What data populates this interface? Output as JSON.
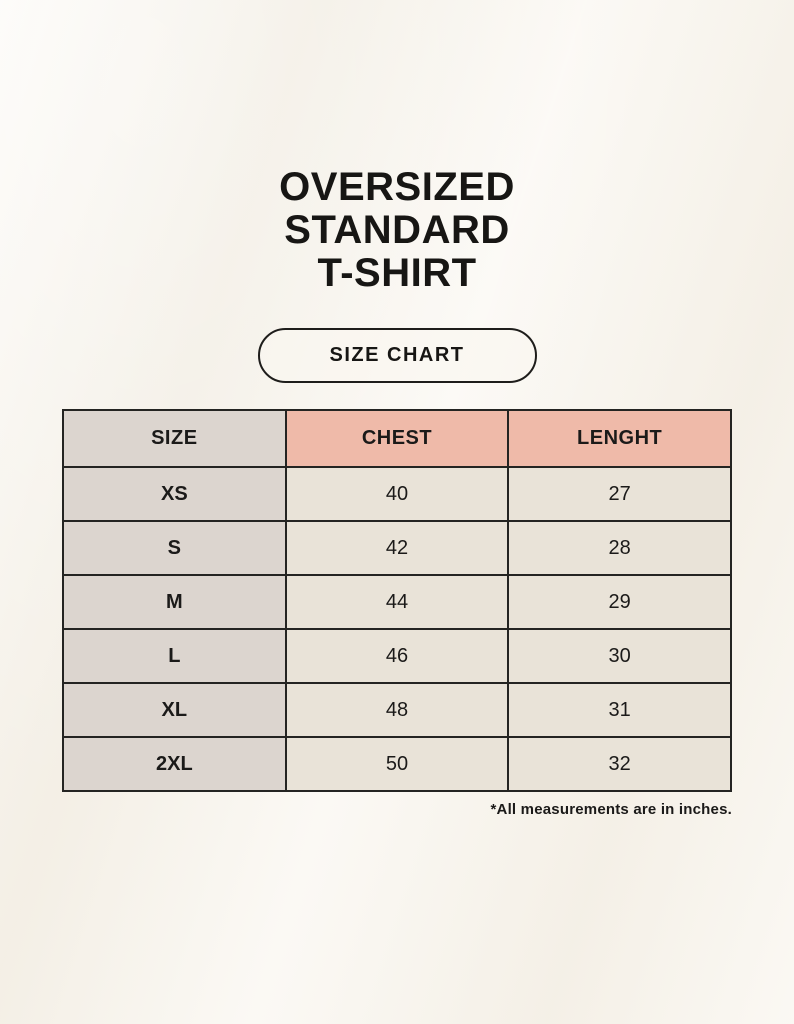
{
  "header": {
    "title_lines": [
      "OVERSIZED",
      "STANDARD",
      "T-SHIRT"
    ],
    "badge_label": "SIZE CHART"
  },
  "chart_data": {
    "type": "table",
    "title": "OVERSIZED STANDARD T-SHIRT",
    "subtitle": "SIZE CHART",
    "columns": [
      "SIZE",
      "CHEST",
      "LENGHT"
    ],
    "rows": [
      [
        "XS",
        "40",
        "27"
      ],
      [
        "S",
        "42",
        "28"
      ],
      [
        "M",
        "44",
        "29"
      ],
      [
        "L",
        "46",
        "30"
      ],
      [
        "XL",
        "48",
        "31"
      ],
      [
        "2XL",
        "50",
        "32"
      ]
    ],
    "footnote": "*All measurements are in inches.",
    "units": "inches"
  },
  "colors": {
    "page_background": "#f8f4ec",
    "label_cell_background": "#dcd5cf",
    "header_accent_background": "#efbaa9",
    "value_cell_background": "#e9e3d8",
    "border": "#242422",
    "text": "#171614"
  }
}
